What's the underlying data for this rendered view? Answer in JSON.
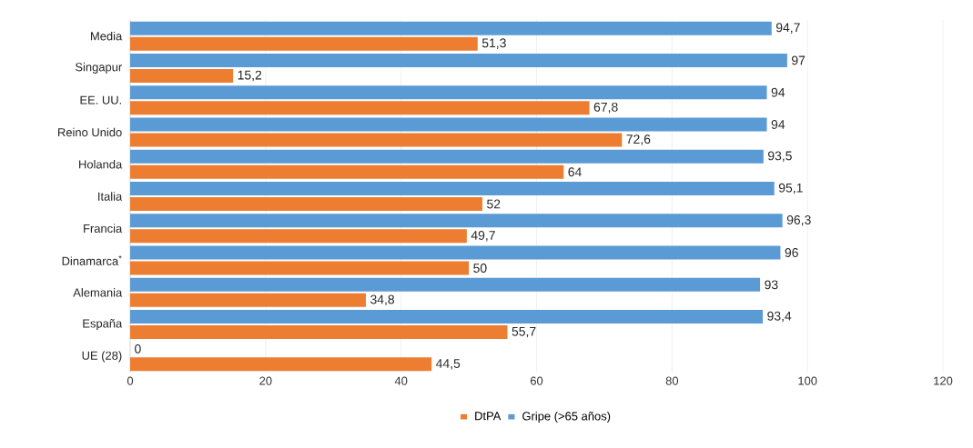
{
  "chart_data": {
    "type": "bar",
    "orientation": "horizontal",
    "categories": [
      "Media",
      "Singapur",
      "EE. UU.",
      "Reino Unido",
      "Holanda",
      "Italia",
      "Francia",
      "Dinamarca$^{*}$",
      "Alemania",
      "España",
      "UE (28)"
    ],
    "series": [
      {
        "name": "DtPA",
        "color": "#ed7d31",
        "values": [
          51.3,
          15.2,
          67.8,
          72.6,
          64,
          52,
          49.7,
          50,
          34.8,
          55.7,
          44.5
        ],
        "value_labels": [
          "51,3",
          "15,2",
          "67,8",
          "72,6",
          "64",
          "52",
          "49,7",
          "50",
          "34,8",
          "55,7",
          "44,5"
        ]
      },
      {
        "name": "Gripe (>65 años)",
        "color": "#5b9bd5",
        "values": [
          94.7,
          97,
          94,
          94,
          93.5,
          95.1,
          96.3,
          96,
          93,
          93.4,
          0
        ],
        "value_labels": [
          "94,7",
          "97",
          "94",
          "94",
          "93,5",
          "95,1",
          "96,3",
          "96",
          "93",
          "93,4",
          "0"
        ]
      }
    ],
    "xlim": [
      0,
      120
    ],
    "xticks": [
      0,
      20,
      40,
      60,
      80,
      100,
      120
    ],
    "grid": "x",
    "legend": "bottom"
  }
}
